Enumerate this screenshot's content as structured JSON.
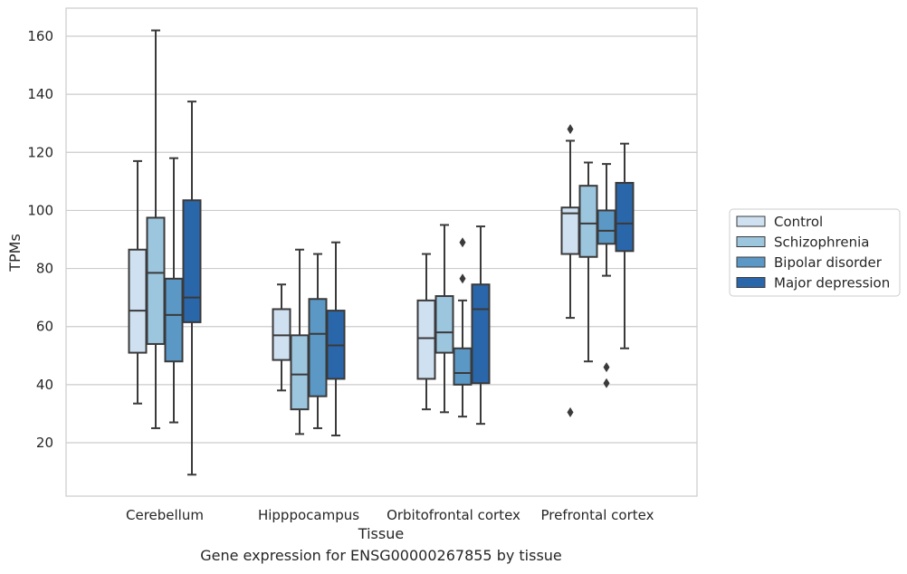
{
  "caption": "Gene expression for ENSG00000267855 by tissue",
  "chart_data": {
    "type": "box",
    "xlabel": "Tissue",
    "ylabel": "TPMs",
    "ylim": [
      1,
      170
    ],
    "yticks": [
      20,
      40,
      60,
      80,
      100,
      120,
      140,
      160
    ],
    "grid": "horizontal",
    "legend_position": "right",
    "categories": [
      "Cerebellum",
      "Hipppocampus",
      "Orbitofrontal cortex",
      "Prefrontal cortex"
    ],
    "series": [
      {
        "name": "Control",
        "color": "#cfe0f1",
        "boxes": [
          {
            "whisker_low": 33.5,
            "q1": 51,
            "median": 65.5,
            "q3": 86.5,
            "whisker_high": 117,
            "outliers": []
          },
          {
            "whisker_low": 38,
            "q1": 48.5,
            "median": 57,
            "q3": 66,
            "whisker_high": 74.5,
            "outliers": []
          },
          {
            "whisker_low": 31.5,
            "q1": 42,
            "median": 56,
            "q3": 69,
            "whisker_high": 85,
            "outliers": []
          },
          {
            "whisker_low": 63,
            "q1": 85,
            "median": 99,
            "q3": 101,
            "whisker_high": 124,
            "outliers": [
              128,
              30.5
            ]
          }
        ]
      },
      {
        "name": "Schizophrenia",
        "color": "#9cc5de",
        "boxes": [
          {
            "whisker_low": 25,
            "q1": 54,
            "median": 78.5,
            "q3": 97.5,
            "whisker_high": 162,
            "outliers": []
          },
          {
            "whisker_low": 23,
            "q1": 31.5,
            "median": 43.5,
            "q3": 57,
            "whisker_high": 86.5,
            "outliers": []
          },
          {
            "whisker_low": 30.5,
            "q1": 51,
            "median": 58,
            "q3": 70.5,
            "whisker_high": 95,
            "outliers": []
          },
          {
            "whisker_low": 48,
            "q1": 84,
            "median": 95.5,
            "q3": 108.5,
            "whisker_high": 116.5,
            "outliers": []
          }
        ]
      },
      {
        "name": "Bipolar disorder",
        "color": "#5b98c5",
        "boxes": [
          {
            "whisker_low": 27,
            "q1": 48,
            "median": 64,
            "q3": 76.5,
            "whisker_high": 118,
            "outliers": []
          },
          {
            "whisker_low": 25,
            "q1": 36,
            "median": 57.5,
            "q3": 69.5,
            "whisker_high": 85,
            "outliers": []
          },
          {
            "whisker_low": 29,
            "q1": 40,
            "median": 44,
            "q3": 52.5,
            "whisker_high": 69,
            "outliers": [
              89,
              76.5
            ]
          },
          {
            "whisker_low": 77.5,
            "q1": 88.5,
            "median": 93,
            "q3": 100,
            "whisker_high": 116,
            "outliers": [
              46,
              40.5
            ]
          }
        ]
      },
      {
        "name": "Major depression",
        "color": "#2a67aa",
        "boxes": [
          {
            "whisker_low": 9,
            "q1": 61.5,
            "median": 70,
            "q3": 103.5,
            "whisker_high": 137.5,
            "outliers": []
          },
          {
            "whisker_low": 22.5,
            "q1": 42,
            "median": 53.5,
            "q3": 65.5,
            "whisker_high": 89,
            "outliers": []
          },
          {
            "whisker_low": 26.5,
            "q1": 40.5,
            "median": 66,
            "q3": 74.5,
            "whisker_high": 94.5,
            "outliers": []
          },
          {
            "whisker_low": 52.5,
            "q1": 86,
            "median": 95.5,
            "q3": 109.5,
            "whisker_high": 123,
            "outliers": []
          }
        ]
      }
    ]
  }
}
